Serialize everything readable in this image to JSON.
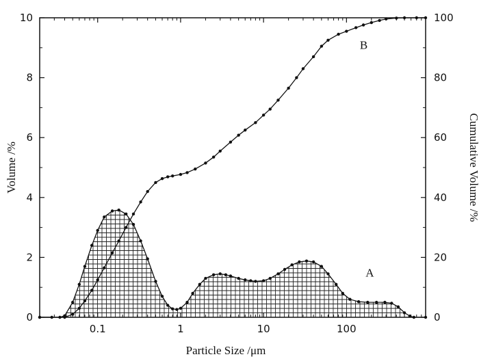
{
  "chart_data": {
    "type": "line",
    "xlabel": "Particle Size /μm",
    "ylabel_left": "Volume /%",
    "ylabel_right": "Cumulative Volume /%",
    "x_scale": "log",
    "xlim": [
      0.02,
      900
    ],
    "ylim_left": [
      0,
      10
    ],
    "ylim_right": [
      0,
      100
    ],
    "x_ticks": [
      {
        "value": 0.1,
        "label": "0.1"
      },
      {
        "value": 1,
        "label": "1"
      },
      {
        "value": 10,
        "label": "10"
      },
      {
        "value": 100,
        "label": "100"
      }
    ],
    "y_ticks_left": [
      {
        "value": 0,
        "label": "0"
      },
      {
        "value": 2,
        "label": "2"
      },
      {
        "value": 4,
        "label": "4"
      },
      {
        "value": 6,
        "label": "6"
      },
      {
        "value": 8,
        "label": "8"
      },
      {
        "value": 10,
        "label": "10"
      }
    ],
    "y_ticks_right": [
      {
        "value": 0,
        "label": "0"
      },
      {
        "value": 20,
        "label": "20"
      },
      {
        "value": 40,
        "label": "40"
      },
      {
        "value": 60,
        "label": "60"
      },
      {
        "value": 80,
        "label": "80"
      },
      {
        "value": 100,
        "label": "100"
      }
    ],
    "grid": false,
    "series": [
      {
        "label": "A",
        "axis": "left",
        "style": "hatched-area",
        "label_at": {
          "x": 170,
          "y": 1.5
        },
        "points": [
          [
            0.02,
            0
          ],
          [
            0.028,
            0
          ],
          [
            0.035,
            0
          ],
          [
            0.04,
            0.05
          ],
          [
            0.05,
            0.5
          ],
          [
            0.06,
            1.1
          ],
          [
            0.07,
            1.7
          ],
          [
            0.085,
            2.4
          ],
          [
            0.1,
            2.9
          ],
          [
            0.12,
            3.35
          ],
          [
            0.15,
            3.55
          ],
          [
            0.18,
            3.58
          ],
          [
            0.22,
            3.45
          ],
          [
            0.27,
            3.1
          ],
          [
            0.33,
            2.55
          ],
          [
            0.4,
            1.95
          ],
          [
            0.5,
            1.2
          ],
          [
            0.6,
            0.7
          ],
          [
            0.7,
            0.4
          ],
          [
            0.8,
            0.28
          ],
          [
            0.9,
            0.26
          ],
          [
            1.0,
            0.3
          ],
          [
            1.2,
            0.5
          ],
          [
            1.4,
            0.8
          ],
          [
            1.7,
            1.1
          ],
          [
            2.0,
            1.3
          ],
          [
            2.5,
            1.42
          ],
          [
            3.0,
            1.45
          ],
          [
            3.5,
            1.42
          ],
          [
            4.0,
            1.38
          ],
          [
            5.0,
            1.3
          ],
          [
            6.0,
            1.25
          ],
          [
            7.0,
            1.22
          ],
          [
            8.0,
            1.2
          ],
          [
            10,
            1.22
          ],
          [
            12,
            1.3
          ],
          [
            15,
            1.45
          ],
          [
            18,
            1.6
          ],
          [
            22,
            1.75
          ],
          [
            27,
            1.85
          ],
          [
            33,
            1.88
          ],
          [
            40,
            1.85
          ],
          [
            50,
            1.7
          ],
          [
            60,
            1.45
          ],
          [
            75,
            1.1
          ],
          [
            90,
            0.8
          ],
          [
            110,
            0.6
          ],
          [
            140,
            0.52
          ],
          [
            180,
            0.5
          ],
          [
            230,
            0.5
          ],
          [
            290,
            0.5
          ],
          [
            350,
            0.47
          ],
          [
            420,
            0.35
          ],
          [
            500,
            0.15
          ],
          [
            580,
            0.04
          ],
          [
            650,
            0
          ],
          [
            900,
            0
          ]
        ]
      },
      {
        "label": "B",
        "axis": "right",
        "style": "line-markers",
        "label_at": {
          "x": 145,
          "y": 91
        },
        "points": [
          [
            0.02,
            0
          ],
          [
            0.04,
            0
          ],
          [
            0.05,
            1
          ],
          [
            0.06,
            3
          ],
          [
            0.07,
            5.5
          ],
          [
            0.085,
            9
          ],
          [
            0.1,
            12.5
          ],
          [
            0.12,
            16.5
          ],
          [
            0.15,
            21.5
          ],
          [
            0.18,
            25.5
          ],
          [
            0.22,
            30
          ],
          [
            0.27,
            34.5
          ],
          [
            0.33,
            38.5
          ],
          [
            0.4,
            42
          ],
          [
            0.5,
            45
          ],
          [
            0.6,
            46.3
          ],
          [
            0.7,
            46.9
          ],
          [
            0.8,
            47.2
          ],
          [
            1.0,
            47.7
          ],
          [
            1.2,
            48.3
          ],
          [
            1.5,
            49.5
          ],
          [
            2.0,
            51.5
          ],
          [
            2.5,
            53.5
          ],
          [
            3.0,
            55.5
          ],
          [
            4.0,
            58.5
          ],
          [
            5.0,
            60.8
          ],
          [
            6.0,
            62.5
          ],
          [
            8.0,
            65
          ],
          [
            10,
            67.5
          ],
          [
            12,
            69.5
          ],
          [
            15,
            72.5
          ],
          [
            20,
            76.5
          ],
          [
            25,
            80
          ],
          [
            30,
            83
          ],
          [
            40,
            87
          ],
          [
            50,
            90.5
          ],
          [
            60,
            92.5
          ],
          [
            80,
            94.5
          ],
          [
            100,
            95.5
          ],
          [
            130,
            96.7
          ],
          [
            160,
            97.6
          ],
          [
            200,
            98.4
          ],
          [
            250,
            99.1
          ],
          [
            300,
            99.6
          ],
          [
            400,
            99.9
          ],
          [
            500,
            100
          ],
          [
            700,
            100
          ],
          [
            900,
            100
          ]
        ]
      }
    ]
  }
}
